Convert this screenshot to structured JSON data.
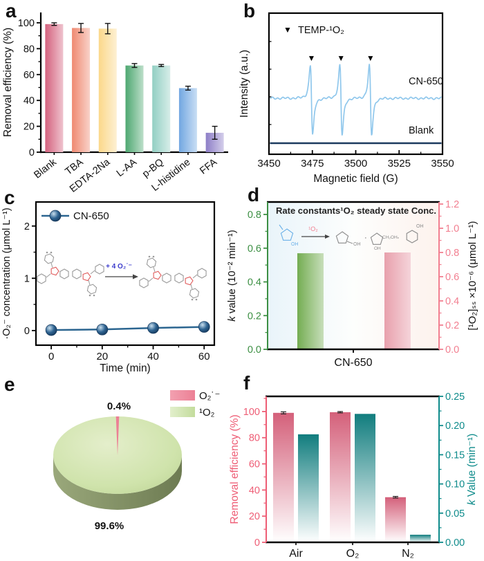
{
  "figure_labels": {
    "a": "a",
    "b": "b",
    "c": "c",
    "d": "d",
    "e": "e",
    "f": "f"
  },
  "chart_data": [
    {
      "panel": "a",
      "type": "bar",
      "categories": [
        "Blank",
        "TBA",
        "EDTA-2Na",
        "L-AA",
        "p-BQ",
        "L-histidine",
        "FFA"
      ],
      "values": [
        99,
        96,
        95.5,
        67,
        67,
        49.5,
        15
      ],
      "errors": [
        1,
        3.5,
        4,
        1.5,
        0.8,
        1.5,
        5
      ],
      "bar_colors": [
        "#d4627e",
        "#ef8971",
        "#fbd88a",
        "#4ea871",
        "#92cfc3",
        "#72a7e1",
        "#8d7ec7"
      ],
      "ylabel": "Removal efficiency (%)",
      "ylim": [
        0,
        108
      ],
      "yticks": [
        "0",
        "20",
        "40",
        "60",
        "80",
        "100"
      ],
      "grid": false
    },
    {
      "panel": "b",
      "type": "line",
      "legend": "TEMP-¹O₂",
      "marker_glyph": "▼",
      "xlabel": "Magnetic field (G)",
      "ylabel": "Intensity (a.u.)",
      "xlim": [
        3450,
        3550
      ],
      "xticks": [
        "3450",
        "3475",
        "3500",
        "3525",
        "3550"
      ],
      "series": [
        {
          "name": "CN-650",
          "color": "#8fc7ec",
          "kind": "epr-triplet",
          "peak_positions": [
            3474.5,
            3491.5,
            3508.5
          ],
          "peak_amplitude": 47
        },
        {
          "name": "Blank",
          "color": "#1c3a5e",
          "kind": "flat"
        }
      ]
    },
    {
      "panel": "c",
      "type": "line",
      "legend": "CN-650",
      "x": [
        0,
        20,
        40,
        60
      ],
      "y": [
        0.01,
        0.02,
        0.05,
        0.07
      ],
      "line_color": "#2b6590",
      "marker_color": "#2e6391",
      "xlabel": "Time (min)",
      "ylabel": "·O₂⁻ concentration (μmol L⁻¹)",
      "xticks": [
        "0",
        "20",
        "40",
        "60"
      ],
      "yticks": [
        "0",
        "1",
        "2"
      ],
      "ylim": [
        -0.28,
        2.46
      ],
      "inset_reaction_label": "+ 4 O₂˙⁻"
    },
    {
      "panel": "d",
      "type": "bar",
      "category": "CN-650",
      "annotation_left": "Rate constants",
      "annotation_right": "¹O₂ steady state Conc.",
      "inset_arrow_label": "¹O₂",
      "left_axis": {
        "label": "k value (10⁻² min⁻¹)",
        "color": "#3c8f43",
        "ticks": [
          "0.0",
          "0.2",
          "0.4",
          "0.6",
          "0.8"
        ],
        "lim": [
          0,
          0.874
        ],
        "bar_value": 0.57,
        "bar_color": "#74ad52"
      },
      "right_axis": {
        "label": "[¹O₂]ₛₛ ×10⁻⁶ (μmol L⁻¹)",
        "color": "#f27f90",
        "ticks": [
          "0.0",
          "0.2",
          "0.4",
          "0.6",
          "0.8",
          "1.0",
          "1.2"
        ],
        "lim": [
          0,
          1.217
        ],
        "bar_value": 0.8,
        "bar_color": "#e8a0ac"
      }
    },
    {
      "panel": "e",
      "type": "pie",
      "slices": [
        {
          "label": "O₂˙⁻",
          "value": 0.4,
          "display": "0.4%",
          "color": "#ec8095"
        },
        {
          "label": "¹O₂",
          "value": 99.6,
          "display": "99.6%",
          "color": "#cfe3ab"
        }
      ],
      "legend_position": "top-right"
    },
    {
      "panel": "f",
      "type": "bar",
      "categories": [
        "Air",
        "O₂",
        "N₂"
      ],
      "left_axis": {
        "label": "Removal efficiency (%)",
        "color": "#ee5d75",
        "ticks": [
          "0",
          "20",
          "40",
          "60",
          "80",
          "100"
        ],
        "lim": [
          0,
          111.6
        ],
        "values": [
          99,
          99.5,
          34.5
        ],
        "errors": [
          0.8,
          0.5,
          0.6
        ],
        "bar_color": "#d4607a"
      },
      "right_axis": {
        "label": "k Value (min⁻¹)",
        "color": "#0e8b8b",
        "ticks": [
          "0.00",
          "0.05",
          "0.10",
          "0.15",
          "0.20",
          "0.25"
        ],
        "lim": [
          0,
          0.25
        ],
        "values": [
          0.185,
          0.22,
          0.013
        ],
        "bar_color": "#117d7e"
      }
    }
  ]
}
